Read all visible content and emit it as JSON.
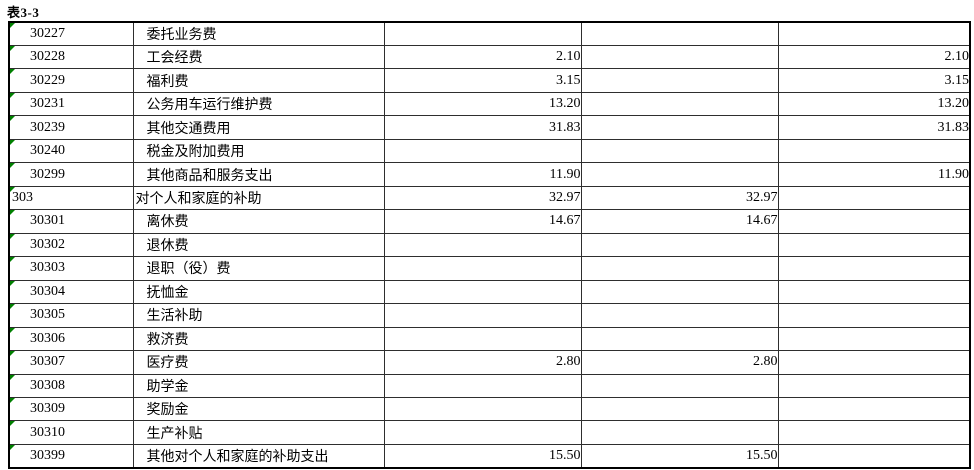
{
  "page": {
    "title": "表3-3"
  },
  "colors": {
    "flag_green": "#008000",
    "grid_line": "#2e2e2e",
    "outer_border": "#000000",
    "text": "#000000",
    "background": "#ffffff"
  },
  "table": {
    "columns": [
      "code",
      "name",
      "value1",
      "value2",
      "value3"
    ],
    "rows": [
      {
        "code": "30227",
        "name": "委托业务费",
        "values": [
          "",
          "",
          ""
        ],
        "level": 2,
        "flag": true
      },
      {
        "code": "30228",
        "name": "工会经费",
        "values": [
          "2.10",
          "",
          "2.10"
        ],
        "level": 2,
        "flag": true
      },
      {
        "code": "30229",
        "name": "福利费",
        "values": [
          "3.15",
          "",
          "3.15"
        ],
        "level": 2,
        "flag": true
      },
      {
        "code": "30231",
        "name": "公务用车运行维护费",
        "values": [
          "13.20",
          "",
          "13.20"
        ],
        "level": 2,
        "flag": true
      },
      {
        "code": "30239",
        "name": "其他交通费用",
        "values": [
          "31.83",
          "",
          "31.83"
        ],
        "level": 2,
        "flag": true
      },
      {
        "code": "30240",
        "name": "税金及附加费用",
        "values": [
          "",
          "",
          ""
        ],
        "level": 2,
        "flag": true
      },
      {
        "code": "30299",
        "name": "其他商品和服务支出",
        "values": [
          "11.90",
          "",
          "11.90"
        ],
        "level": 2,
        "flag": true
      },
      {
        "code": "303",
        "name": "对个人和家庭的补助",
        "values": [
          "32.97",
          "32.97",
          ""
        ],
        "level": 1,
        "flag": true
      },
      {
        "code": "30301",
        "name": "离休费",
        "values": [
          "14.67",
          "14.67",
          ""
        ],
        "level": 2,
        "flag": true
      },
      {
        "code": "30302",
        "name": "退休费",
        "values": [
          "",
          "",
          ""
        ],
        "level": 2,
        "flag": true
      },
      {
        "code": "30303",
        "name": "退职（役）费",
        "values": [
          "",
          "",
          ""
        ],
        "level": 2,
        "flag": true
      },
      {
        "code": "30304",
        "name": "抚恤金",
        "values": [
          "",
          "",
          ""
        ],
        "level": 2,
        "flag": true
      },
      {
        "code": "30305",
        "name": "生活补助",
        "values": [
          "",
          "",
          ""
        ],
        "level": 2,
        "flag": true
      },
      {
        "code": "30306",
        "name": "救济费",
        "values": [
          "",
          "",
          ""
        ],
        "level": 2,
        "flag": true
      },
      {
        "code": "30307",
        "name": "医疗费",
        "values": [
          "2.80",
          "2.80",
          ""
        ],
        "level": 2,
        "flag": true
      },
      {
        "code": "30308",
        "name": "助学金",
        "values": [
          "",
          "",
          ""
        ],
        "level": 2,
        "flag": true
      },
      {
        "code": "30309",
        "name": "奖励金",
        "values": [
          "",
          "",
          ""
        ],
        "level": 2,
        "flag": true
      },
      {
        "code": "30310",
        "name": "生产补贴",
        "values": [
          "",
          "",
          ""
        ],
        "level": 2,
        "flag": true
      },
      {
        "code": "30399",
        "name": "其他对个人和家庭的补助支出",
        "values": [
          "15.50",
          "15.50",
          ""
        ],
        "level": 2,
        "flag": true
      }
    ]
  }
}
